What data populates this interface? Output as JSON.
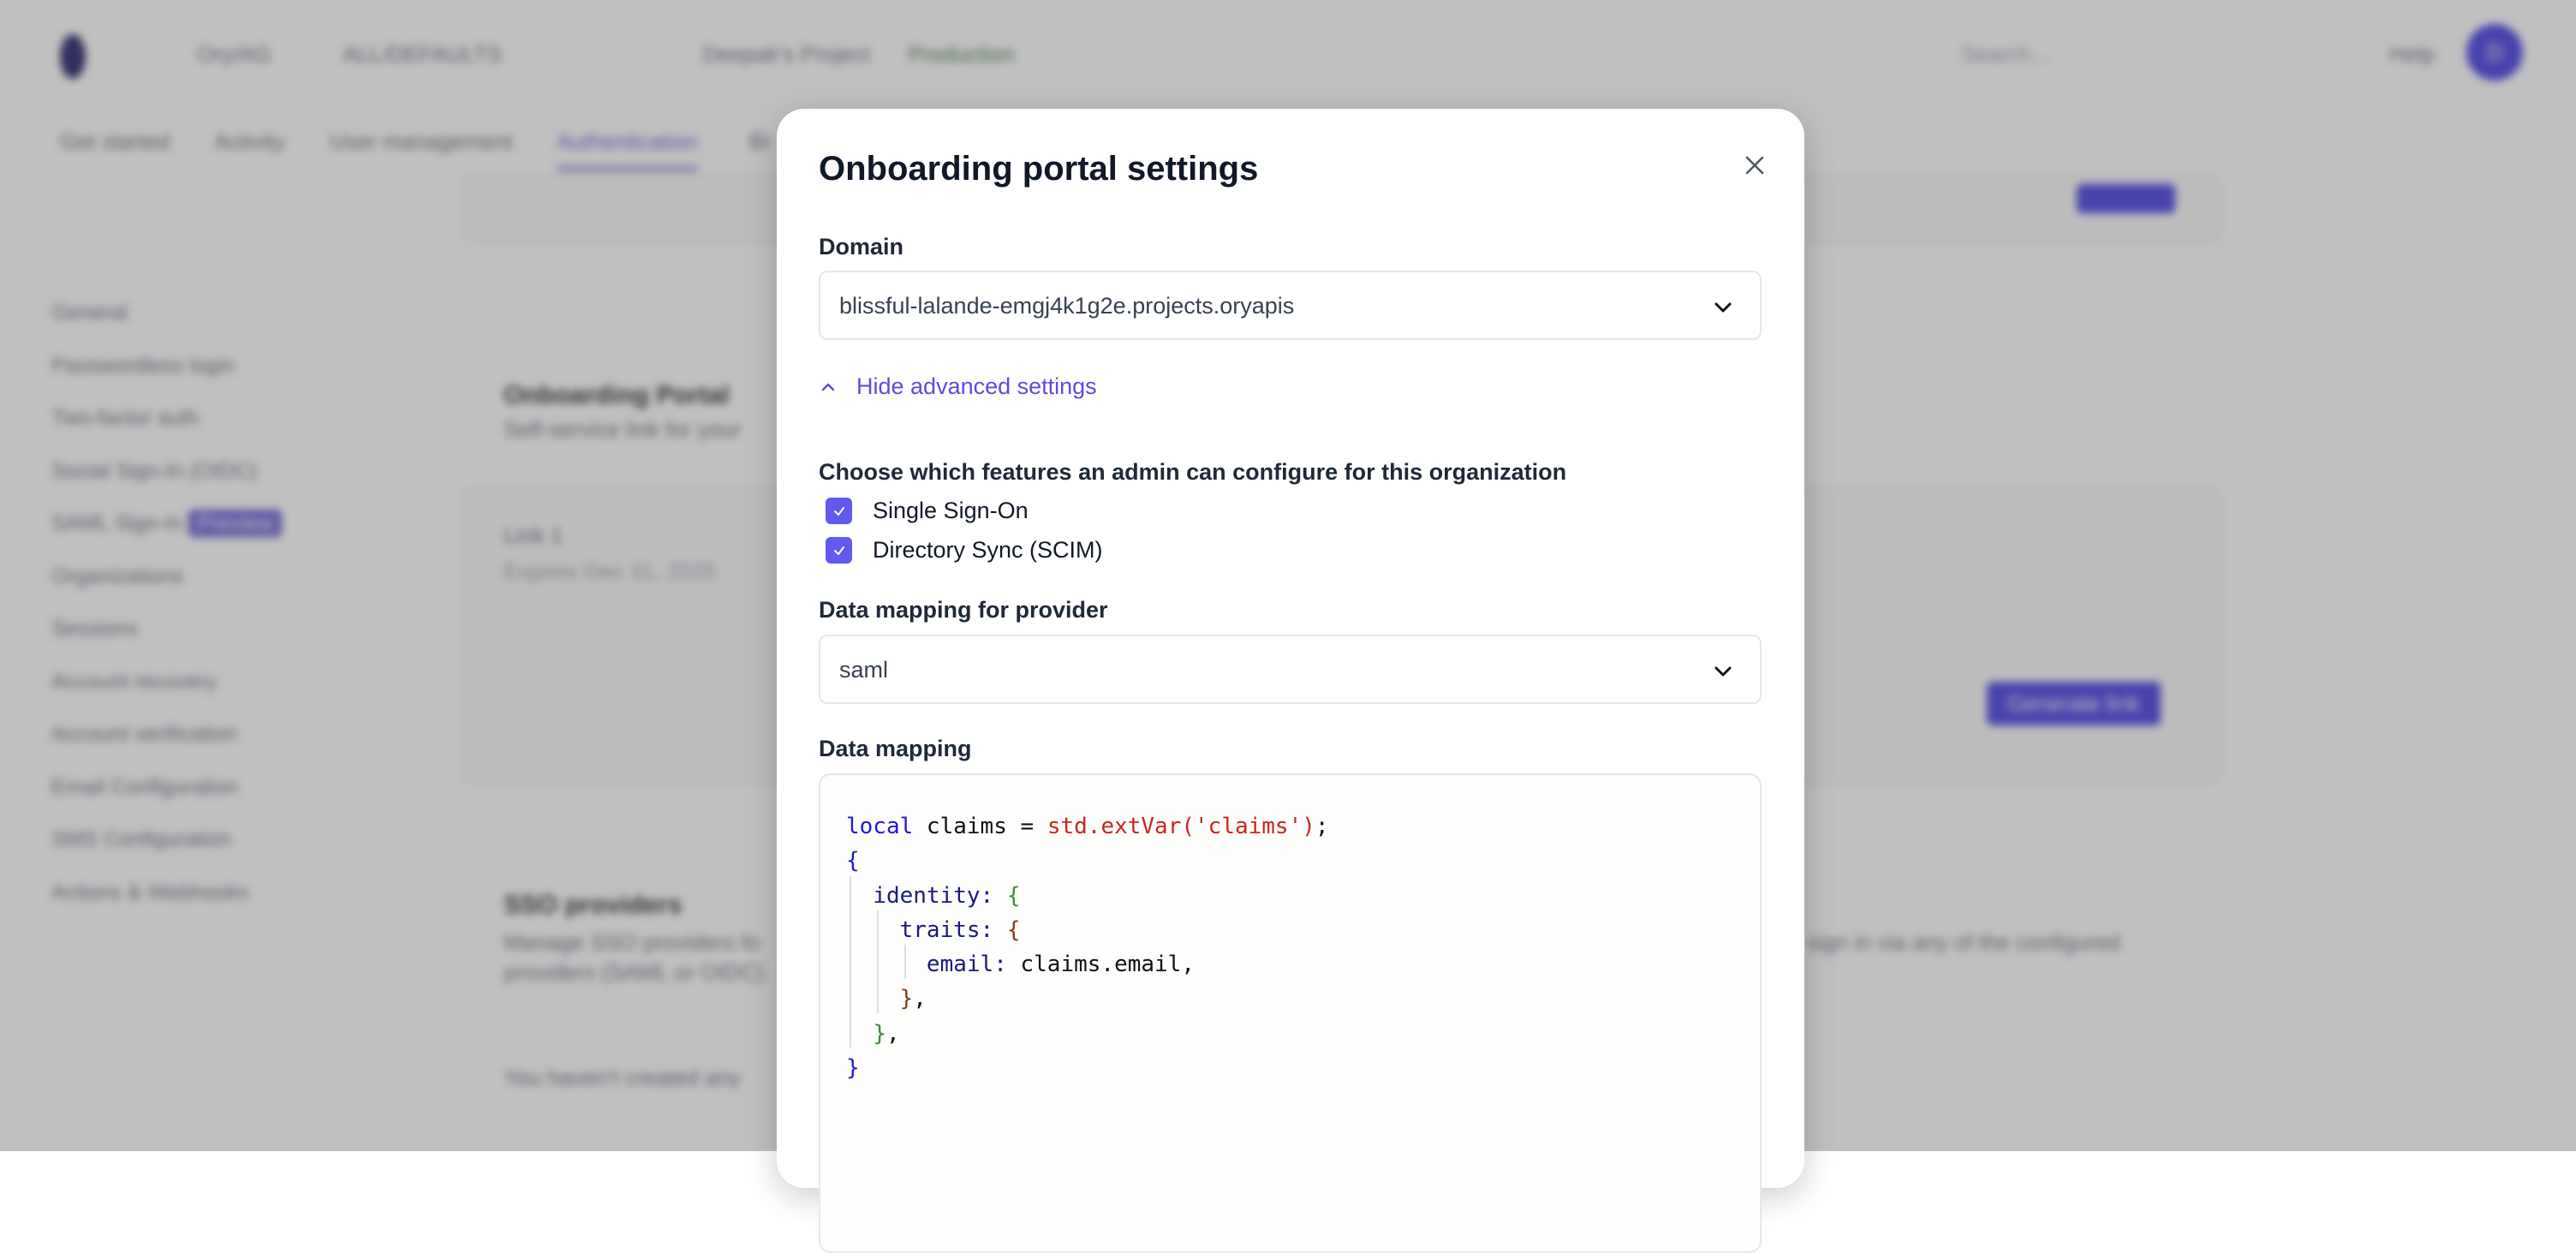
{
  "background": {
    "header": {
      "org": "Ory/AG",
      "org_badge": "ALL/DEFAULTS",
      "project": "Deepak's Project",
      "env": "Production",
      "search_placeholder": "Search...",
      "help": "Help",
      "avatar": "D"
    },
    "tabs": [
      "Get started",
      "Activity",
      "User management",
      "Authentication",
      "Br"
    ],
    "active_tab": "Authentication",
    "sidebar": [
      "General",
      "Passwordless login",
      "Two-factor auth",
      "Social Sign-In (OIDC)",
      "SAML Sign-In",
      "Organizations",
      "Sessions",
      "Account recovery",
      "Account verification",
      "Email Configuration",
      "SMS Configuration",
      "Actions & Webhooks"
    ],
    "sidebar_badge": "Preview",
    "portal": {
      "title": "Onboarding Portal",
      "subtitle": "Self-service link for your",
      "link_name": "Link 1",
      "link_expiry": "Expires Dec 31, 2025",
      "generate": "Generate link"
    },
    "sso": {
      "title": "SSO providers",
      "desc": "Manage SSO providers fo",
      "desc2": "providers (SAML or OIDC)",
      "desc_right": "sign in via any of the configured",
      "empty": "You haven't created any"
    }
  },
  "modal": {
    "title": "Onboarding portal settings",
    "domain_label": "Domain",
    "domain_value": "blissful-lalande-emgj4k1g2e.projects.oryapis",
    "advanced_toggle": "Hide advanced settings",
    "features_label": "Choose which features an admin can configure for this organization",
    "features": [
      {
        "label": "Single Sign-On",
        "checked": true
      },
      {
        "label": "Directory Sync (SCIM)",
        "checked": true
      }
    ],
    "provider_label": "Data mapping for provider",
    "provider_value": "saml",
    "mapping_label": "Data mapping",
    "code": {
      "l1_kw": "local",
      "l1_var": " claims = ",
      "l1_call": "std.extVar('claims')",
      "l1_end": ";",
      "open": "{",
      "identity_key": "identity:",
      "identity_open": "{",
      "traits_key": "traits:",
      "traits_open": "{",
      "email_key": "email:",
      "email_val": " claims.email,",
      "traits_close": "}",
      "identity_close": "}",
      "comma": ",",
      "close": "}"
    },
    "accent_color": "#6259f0"
  }
}
